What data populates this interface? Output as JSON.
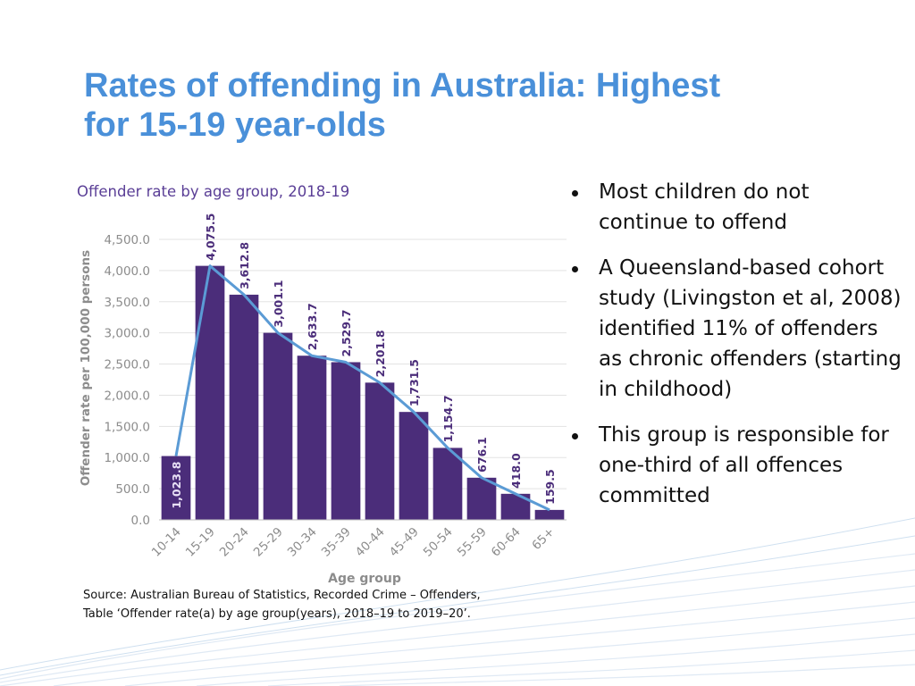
{
  "title_lines": [
    "Rates of offending in Australia: Highest",
    "for 15-19 year-olds"
  ],
  "bullets": [
    "Most children do not continue to offend",
    "A Queensland-based cohort study (Livingston et al, 2008) identified 11% of offenders as chronic offenders (starting in childhood)",
    "This group is responsible for one-third of all offences committed"
  ],
  "source_lines": [
    "Source: Australian Bureau of Statistics, Recorded Crime – Offenders,",
    "Table ‘Offender rate(a) by age group(years), 2018–19 to 2019–20’."
  ],
  "colors": {
    "title": "#4A90D9",
    "bar": "#4B2D7A",
    "line": "#5B9BD5",
    "chart_title": "#5A3E96",
    "axis_text": "#8C8C8C"
  },
  "chart_data": {
    "type": "bar",
    "title": "Offender rate by age group, 2018-19",
    "xlabel": "Age group",
    "ylabel": "Offender rate per 100,000 persons",
    "ylim": [
      0,
      4500
    ],
    "yticks": [
      "0.0",
      "500.0",
      "1,000.0",
      "1,500.0",
      "2,000.0",
      "2,500.0",
      "3,000.0",
      "3,500.0",
      "4,000.0",
      "4,500.0"
    ],
    "grid": true,
    "categories": [
      "10-14",
      "15-19",
      "20-24",
      "25-29",
      "30-34",
      "35-39",
      "40-44",
      "45-49",
      "50-54",
      "55-59",
      "60-64",
      "65+"
    ],
    "series": [
      {
        "values": [
          1023.8,
          4075.5,
          3612.8,
          3001.1,
          2633.7,
          2529.7,
          2201.8,
          1731.5,
          1154.7,
          676.1,
          418.0,
          159.5
        ],
        "labels": [
          "1,023.8",
          "4,075.5",
          "3,612.8",
          "3,001.1",
          "2,633.7",
          "2,529.7",
          "2,201.8",
          "1,731.5",
          "1,154.7",
          "676.1",
          "418.0",
          "159.5"
        ]
      }
    ],
    "overlay_line": true
  }
}
